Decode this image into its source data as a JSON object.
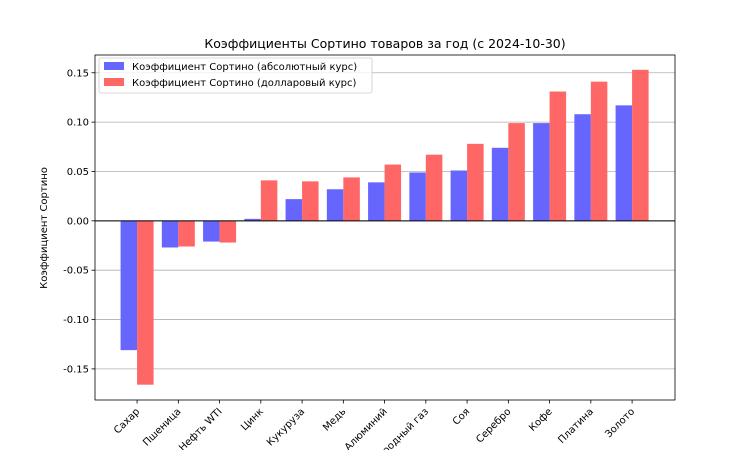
{
  "chart_data": {
    "type": "bar",
    "title": "Коэффициенты Сортино товаров за год (с 2024-10-30)",
    "xlabel": "",
    "ylabel": "Коэффициент Сортино",
    "categories": [
      "Сахар",
      "Пшеница",
      "Нефть WTI",
      "Цинк",
      "Кукуруза",
      "Медь",
      "Алюминий",
      "Природный газ",
      "Соя",
      "Серебро",
      "Кофе",
      "Платина",
      "Золото"
    ],
    "series": [
      {
        "name": "Коэффициент Сортино (абсолютный курс)",
        "color": "#6666ff",
        "values": [
          -0.131,
          -0.027,
          -0.021,
          0.002,
          0.022,
          0.032,
          0.039,
          0.049,
          0.051,
          0.074,
          0.099,
          0.108,
          0.117
        ]
      },
      {
        "name": "Коэффициент Сортино (долларовый курс)",
        "color": "#ff6666",
        "values": [
          -0.166,
          -0.026,
          -0.022,
          0.041,
          0.04,
          0.044,
          0.057,
          0.067,
          0.078,
          0.099,
          0.131,
          0.141,
          0.153
        ]
      }
    ],
    "ylim": [
      -0.1815,
      0.168
    ],
    "yticks": [
      "-0.15",
      "-0.10",
      "-0.05",
      "0.00",
      "0.05",
      "0.10",
      "0.15"
    ],
    "grid": "y",
    "legend": "top-left"
  }
}
